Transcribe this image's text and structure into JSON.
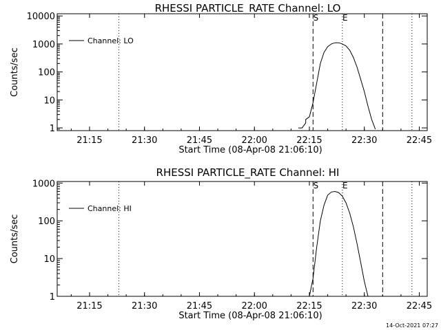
{
  "chart_data": [
    {
      "type": "line",
      "title": "RHESSI PARTICLE_RATE Channel: LO",
      "xlabel": "Start Time (08-Apr-08 21:06:10)",
      "ylabel": "Counts/sec",
      "yscale": "log",
      "ylim": [
        0.8,
        12000
      ],
      "xlim_minutes": [
        0,
        101
      ],
      "x_ticks": [
        "21:15",
        "21:30",
        "21:45",
        "22:00",
        "22:15",
        "22:30",
        "22:45"
      ],
      "y_ticks": [
        "1",
        "10",
        "100",
        "1000",
        "10000"
      ],
      "legend": {
        "entries": [
          "Channel: LO"
        ],
        "position": "top-left"
      },
      "markers": [
        {
          "time": "21:23",
          "style": "dotted",
          "label": ""
        },
        {
          "time": "22:16",
          "style": "dashed",
          "label": "S"
        },
        {
          "time": "22:24",
          "style": "dotted",
          "label": "E"
        },
        {
          "time": "22:35",
          "style": "dashed",
          "label": ""
        },
        {
          "time": "22:43",
          "style": "dotted",
          "label": ""
        }
      ],
      "series": [
        {
          "name": "Channel: LO",
          "x": [
            "22:12",
            "22:13",
            "22:14",
            "22:14",
            "22:15",
            "22:16",
            "22:17",
            "22:18",
            "22:19",
            "22:20",
            "22:21",
            "22:22",
            "22:23",
            "22:24",
            "22:25",
            "22:26",
            "22:27",
            "22:28",
            "22:29",
            "22:30",
            "22:31",
            "22:32",
            "22:33"
          ],
          "values": [
            1,
            1,
            1.5,
            2,
            2.5,
            8,
            40,
            200,
            500,
            800,
            1000,
            1100,
            1100,
            1000,
            850,
            600,
            330,
            150,
            55,
            20,
            6,
            2,
            0.9
          ]
        }
      ]
    },
    {
      "type": "line",
      "title": "RHESSI PARTICLE_RATE Channel: HI",
      "xlabel": "Start Time (08-Apr-08 21:06:10)",
      "ylabel": "Counts/sec",
      "yscale": "log",
      "ylim": [
        1,
        1100
      ],
      "xlim_minutes": [
        0,
        101
      ],
      "x_ticks": [
        "21:15",
        "21:30",
        "21:45",
        "22:00",
        "22:15",
        "22:30",
        "22:45"
      ],
      "y_ticks": [
        "1",
        "10",
        "100",
        "1000"
      ],
      "legend": {
        "entries": [
          "Channel: HI"
        ],
        "position": "top-left"
      },
      "markers": [
        {
          "time": "21:23",
          "style": "dotted",
          "label": ""
        },
        {
          "time": "22:16",
          "style": "dashed",
          "label": "S"
        },
        {
          "time": "22:24",
          "style": "dotted",
          "label": "E"
        },
        {
          "time": "22:35",
          "style": "dashed",
          "label": ""
        },
        {
          "time": "22:43",
          "style": "dotted",
          "label": ""
        }
      ],
      "series": [
        {
          "name": "Channel: HI",
          "x": [
            "22:15",
            "22:16",
            "22:17",
            "22:18",
            "22:19",
            "22:20",
            "22:21",
            "22:22",
            "22:23",
            "22:24",
            "22:25",
            "22:26",
            "22:27",
            "22:28",
            "22:29",
            "22:30",
            "22:31"
          ],
          "values": [
            1,
            3,
            20,
            100,
            260,
            480,
            580,
            600,
            560,
            450,
            300,
            160,
            70,
            25,
            8,
            2.5,
            1
          ]
        }
      ]
    }
  ],
  "footer": {
    "timestamp": "14-Oct-2021 07:27"
  }
}
